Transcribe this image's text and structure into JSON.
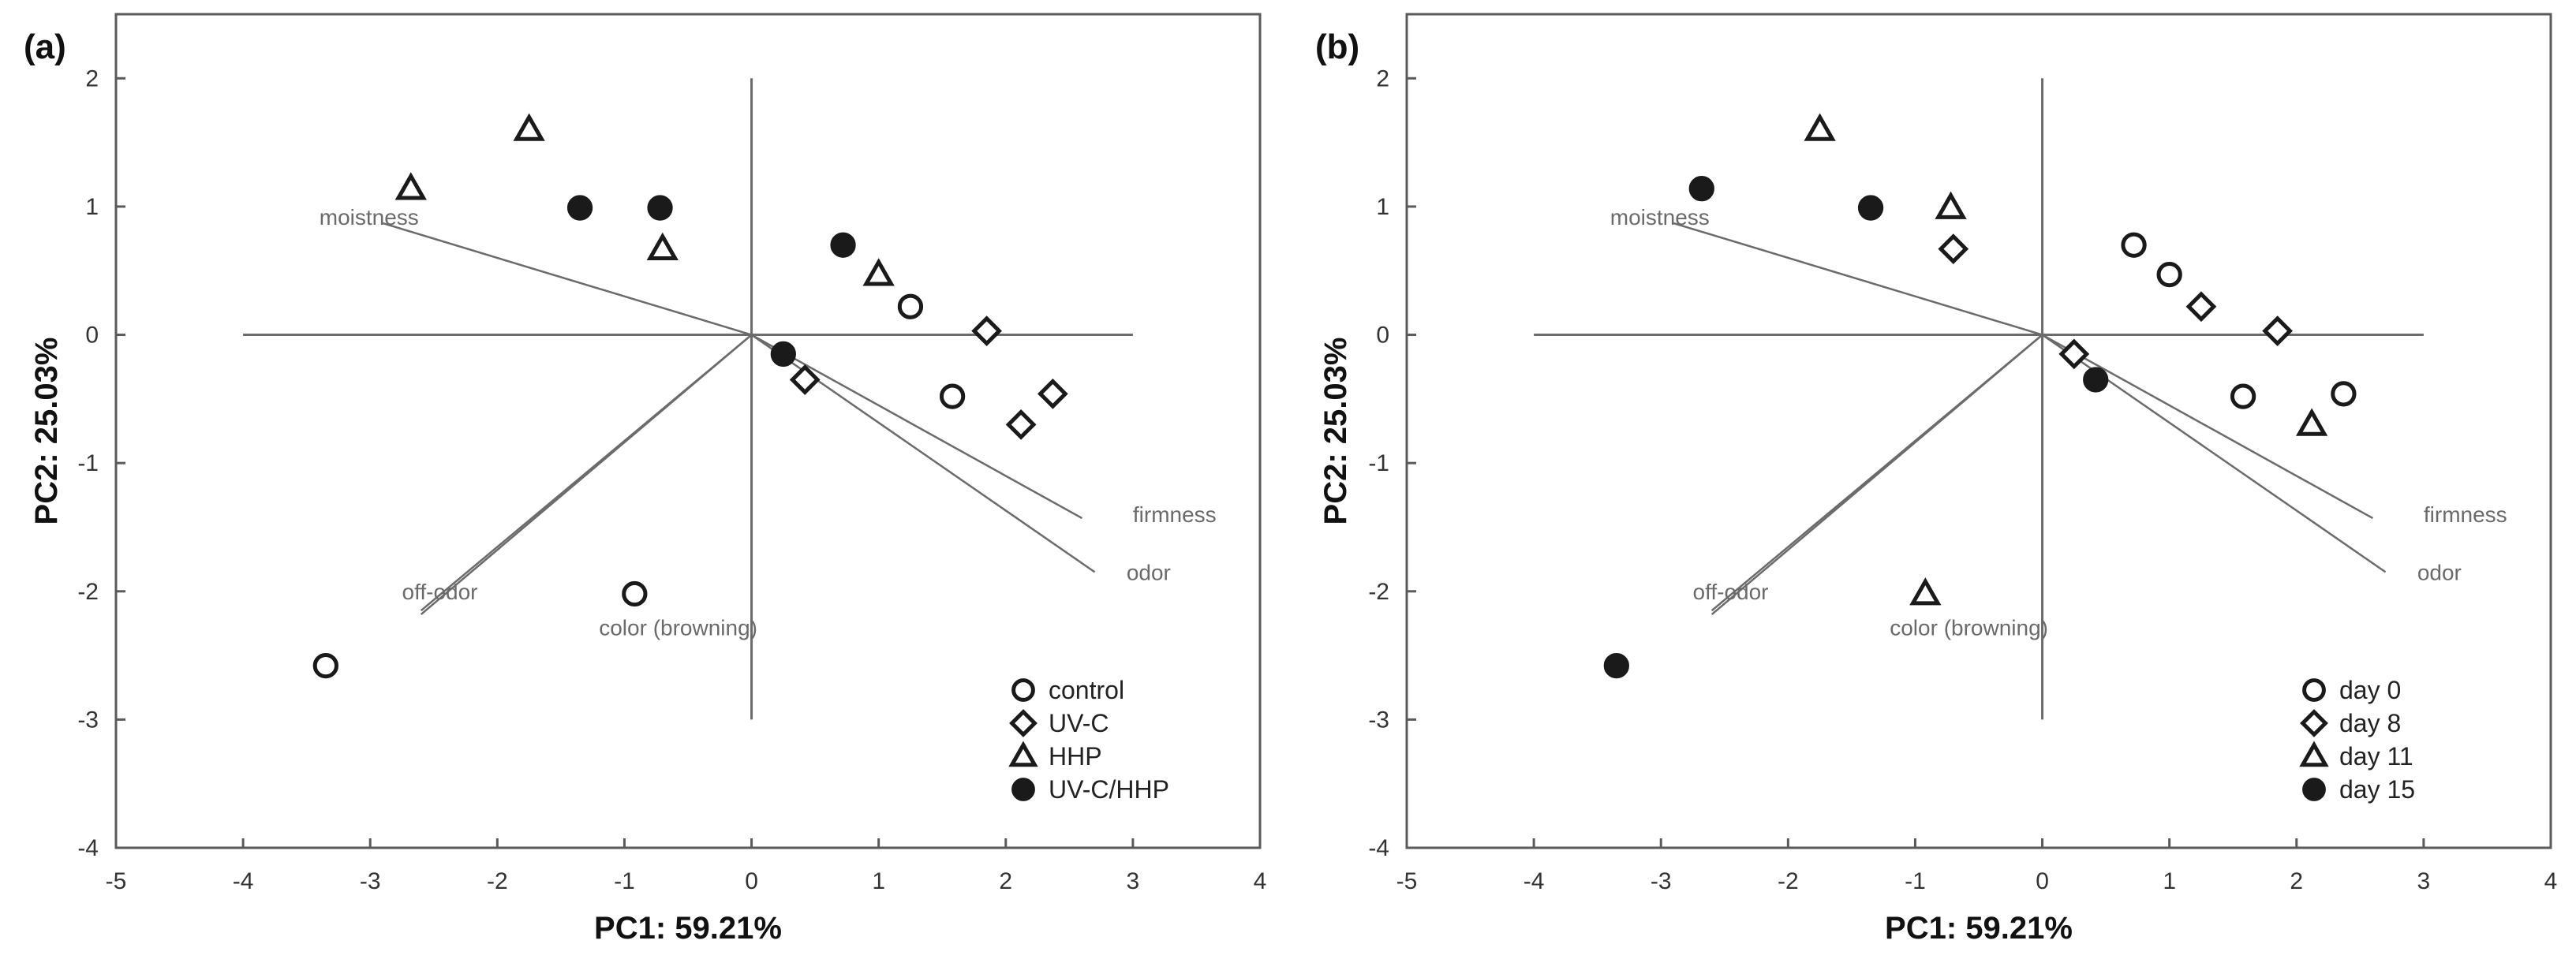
{
  "colors": {
    "line": "#6b6b6b",
    "frame": "#5a5a5a",
    "marker": "#1a1a1a",
    "text": "#6a6a6a",
    "bold": "#111111"
  },
  "chart_data": [
    {
      "type": "scatter",
      "panel_label": "(a)",
      "title": "",
      "xlabel": "PC1: 59.21%",
      "ylabel": "PC2: 25.03%",
      "xlim": [
        -5,
        4
      ],
      "ylim": [
        -4,
        2.5
      ],
      "xticks": [
        "-5",
        "-4",
        "-3",
        "-2",
        "-1",
        "0",
        "1",
        "2",
        "3",
        "4"
      ],
      "yticks": [
        "2",
        "1",
        "0",
        "-1",
        "-2",
        "-3",
        "-4"
      ],
      "axis_lines": {
        "horizontal": [
          -4,
          3
        ],
        "vertical": [
          -3,
          2
        ]
      },
      "loadings": [
        {
          "label": "moistness",
          "x": -2.9,
          "y": 0.87,
          "label_x": -3.4,
          "label_y": 0.92
        },
        {
          "label": "firmness",
          "x": 2.6,
          "y": -1.43,
          "label_x": 3.0,
          "label_y": -1.4
        },
        {
          "label": "odor",
          "x": 2.7,
          "y": -1.85,
          "label_x": 2.95,
          "label_y": -1.85
        },
        {
          "label": "off-odor",
          "x": -2.6,
          "y": -2.15,
          "label_x": -2.75,
          "label_y": -2.0
        },
        {
          "label": "color (browning)",
          "x": -2.6,
          "y": -2.18,
          "label_x": -1.2,
          "label_y": -2.28
        }
      ],
      "series": [
        {
          "name": "control",
          "marker": "circle-open",
          "points": [
            [
              1.25,
              0.22
            ],
            [
              1.58,
              -0.48
            ],
            [
              -0.92,
              -2.02
            ],
            [
              -3.35,
              -2.58
            ]
          ]
        },
        {
          "name": "UV-C",
          "marker": "diamond-open",
          "points": [
            [
              1.85,
              0.03
            ],
            [
              2.37,
              -0.46
            ],
            [
              2.12,
              -0.7
            ],
            [
              0.42,
              -0.35
            ]
          ]
        },
        {
          "name": "HHP",
          "marker": "triangle-open",
          "points": [
            [
              -1.75,
              1.6
            ],
            [
              -2.68,
              1.14
            ],
            [
              -0.7,
              0.67
            ],
            [
              1.0,
              0.47
            ]
          ]
        },
        {
          "name": "UV-C/HHP",
          "marker": "circle-filled",
          "points": [
            [
              -1.35,
              0.99
            ],
            [
              -0.72,
              0.99
            ],
            [
              0.72,
              0.7
            ],
            [
              0.25,
              -0.15
            ]
          ]
        }
      ],
      "legend": {
        "placement": "bottom-right",
        "entries": [
          "control",
          "UV-C",
          "HHP",
          "UV-C/HHP"
        ]
      }
    },
    {
      "type": "scatter",
      "panel_label": "(b)",
      "title": "",
      "xlabel": "PC1: 59.21%",
      "ylabel": "PC2: 25.03%",
      "xlim": [
        -5,
        4
      ],
      "ylim": [
        -4,
        2.5
      ],
      "xticks": [
        "-5",
        "-4",
        "-3",
        "-2",
        "-1",
        "0",
        "1",
        "2",
        "3",
        "4"
      ],
      "yticks": [
        "2",
        "1",
        "0",
        "-1",
        "-2",
        "-3",
        "-4"
      ],
      "axis_lines": {
        "horizontal": [
          -4,
          3
        ],
        "vertical": [
          -3,
          2
        ]
      },
      "loadings": [
        {
          "label": "moistness",
          "x": -2.9,
          "y": 0.87,
          "label_x": -3.4,
          "label_y": 0.92
        },
        {
          "label": "firmness",
          "x": 2.6,
          "y": -1.43,
          "label_x": 3.0,
          "label_y": -1.4
        },
        {
          "label": "odor",
          "x": 2.7,
          "y": -1.85,
          "label_x": 2.95,
          "label_y": -1.85
        },
        {
          "label": "off-odor",
          "x": -2.6,
          "y": -2.15,
          "label_x": -2.75,
          "label_y": -2.0
        },
        {
          "label": "color (browning)",
          "x": -2.6,
          "y": -2.18,
          "label_x": -1.2,
          "label_y": -2.28
        }
      ],
      "series": [
        {
          "name": "day 0",
          "marker": "circle-open",
          "points": [
            [
              0.72,
              0.7
            ],
            [
              1.0,
              0.47
            ],
            [
              1.58,
              -0.48
            ],
            [
              2.37,
              -0.46
            ]
          ]
        },
        {
          "name": "day 8",
          "marker": "diamond-open",
          "points": [
            [
              -0.7,
              0.67
            ],
            [
              1.25,
              0.22
            ],
            [
              1.85,
              0.03
            ],
            [
              0.25,
              -0.15
            ]
          ]
        },
        {
          "name": "day 11",
          "marker": "triangle-open",
          "points": [
            [
              -1.75,
              1.6
            ],
            [
              -0.72,
              0.99
            ],
            [
              2.12,
              -0.7
            ],
            [
              -0.92,
              -2.02
            ]
          ]
        },
        {
          "name": "day 15",
          "marker": "circle-filled",
          "points": [
            [
              -2.68,
              1.14
            ],
            [
              -1.35,
              0.99
            ],
            [
              0.42,
              -0.35
            ],
            [
              -3.35,
              -2.58
            ]
          ]
        }
      ],
      "legend": {
        "placement": "bottom-right",
        "entries": [
          "day 0",
          "day 8",
          "day 11",
          "day 15"
        ]
      }
    }
  ]
}
